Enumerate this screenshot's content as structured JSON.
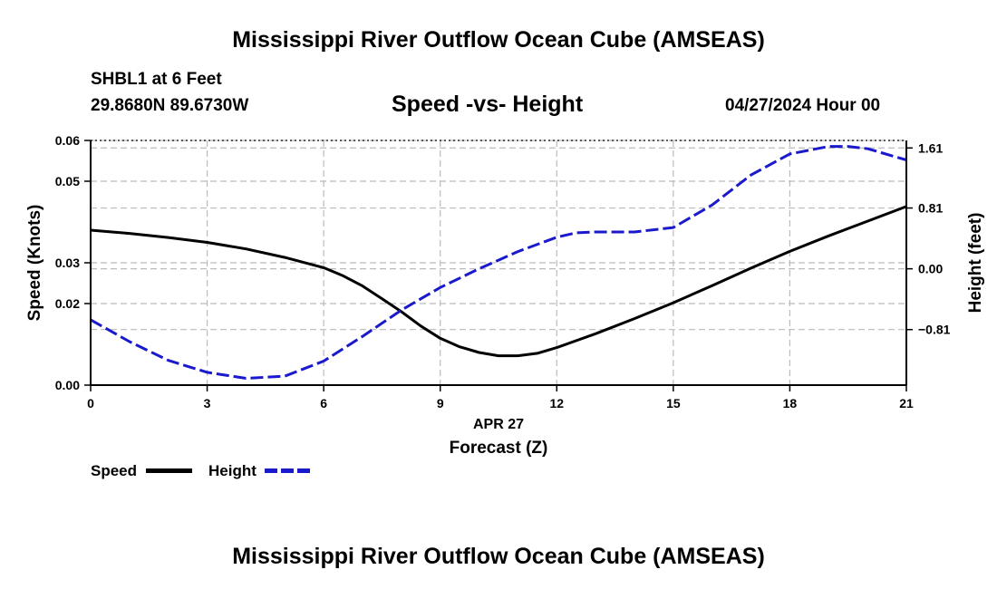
{
  "page": {
    "title_top": "Mississippi River Outflow Ocean Cube (AMSEAS)",
    "title_bottom": "Mississippi River Outflow Ocean Cube (AMSEAS)",
    "station": "SHBL1 at 6 Feet",
    "coords": "29.8680N  89.6730W",
    "chart_title": "Speed -vs- Height",
    "datetime": "04/27/2024 Hour 00"
  },
  "chart_data": {
    "type": "line",
    "title": "Speed -vs- Height",
    "xlabel": "Forecast (Z)",
    "xlabel_date": "APR 27",
    "ylabel": "Speed (Knots)",
    "y2label": "Height (feet)",
    "xlim": [
      0,
      21
    ],
    "ylim": [
      0,
      0.06
    ],
    "y2lim": [
      -1.55,
      1.71
    ],
    "x_ticks": [
      0,
      3,
      6,
      9,
      12,
      15,
      18,
      21
    ],
    "x_tick_labels": [
      "0",
      "3",
      "6",
      "9",
      "12",
      "15",
      "18",
      "21"
    ],
    "y_ticks": [
      0,
      0.02,
      0.03,
      0.05,
      0.06
    ],
    "y_tick_labels": [
      "0.00",
      "0.02",
      "0.03",
      "0.05",
      "0.06"
    ],
    "y2_ticks": [
      1.61,
      0.81,
      0.0,
      -0.81
    ],
    "y2_tick_labels": [
      "1.61",
      "0.81",
      "0.00",
      "−0.81"
    ],
    "grid": true,
    "colors": {
      "speed": "#000000",
      "height": "#1a1acc",
      "grid": "#bbbbbb"
    },
    "series": [
      {
        "name": "Speed",
        "axis": "left",
        "style": "solid",
        "x": [
          0,
          1,
          2,
          3,
          4,
          5,
          6,
          6.5,
          7,
          7.5,
          8,
          8.5,
          9,
          9.5,
          10,
          10.5,
          11,
          11.5,
          12,
          13,
          14,
          15,
          16,
          17,
          18,
          19,
          20,
          21
        ],
        "values": [
          0.038,
          0.0372,
          0.0362,
          0.035,
          0.0334,
          0.0313,
          0.0288,
          0.0268,
          0.0243,
          0.0212,
          0.018,
          0.0145,
          0.0115,
          0.0094,
          0.008,
          0.0072,
          0.0072,
          0.0078,
          0.0092,
          0.0126,
          0.0163,
          0.0202,
          0.0244,
          0.0287,
          0.0328,
          0.0366,
          0.0402,
          0.0438
        ]
      },
      {
        "name": "Height",
        "axis": "right",
        "style": "dashed",
        "x": [
          0,
          1,
          2,
          3,
          4,
          5,
          6,
          7,
          8,
          9,
          10,
          11,
          12,
          12.5,
          13,
          14,
          15,
          16,
          17,
          18,
          19,
          19.5,
          20,
          21
        ],
        "values": [
          -0.68,
          -0.97,
          -1.22,
          -1.38,
          -1.46,
          -1.43,
          -1.23,
          -0.9,
          -0.55,
          -0.25,
          0.0,
          0.23,
          0.42,
          0.48,
          0.49,
          0.49,
          0.55,
          0.85,
          1.25,
          1.53,
          1.63,
          1.63,
          1.6,
          1.45
        ]
      }
    ],
    "legend": [
      {
        "name": "Speed",
        "style": "solid"
      },
      {
        "name": "Height",
        "style": "dashed"
      }
    ]
  }
}
